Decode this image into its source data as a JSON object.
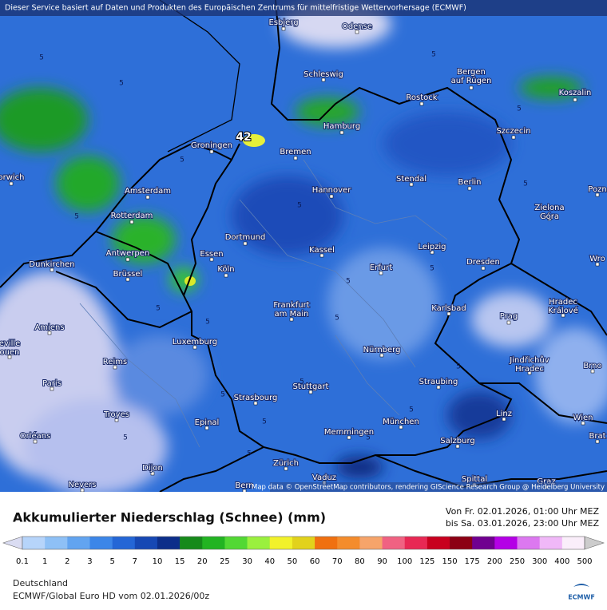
{
  "header": {
    "notice": "Dieser Service basiert auf Daten und Produkten des Europäischen Zentrums für mittelfristige Wettervorhersage (ECMWF)",
    "attribution": "Map data © OpenStreetMap contributors, rendering GIScience Research Group @ Heidelberg University"
  },
  "map": {
    "cities": [
      "Esbjerg",
      "Odense",
      "Schleswig",
      "Bergen",
      "auf Rügen",
      "Koszalin",
      "Rostock",
      "Hamburg",
      "Szczecin",
      "Groningen",
      "Bremen",
      "orwich",
      "Amsterdam",
      "Stendal",
      "Berlin",
      "Hannover",
      "Pozn",
      "Zielona",
      "Góra",
      "Rotterdam",
      "Dortmund",
      "Essen",
      "Antwerpen",
      "Leipzig",
      "Kassel",
      "Erfurt",
      "Wro",
      "Dresden",
      "Dunkirchen",
      "Köln",
      "Brüssel",
      "Frankfurt",
      "am Main",
      "Karlsbad",
      "Hradec",
      "Králové",
      "Prag",
      "Amiens",
      "Luxemburg",
      "eville",
      "ouen",
      "Nürnberg",
      "Jindřichův",
      "Hradec",
      "Reims",
      "Brno",
      "Paris",
      "Stuttgart",
      "Straubing",
      "Strasbourg",
      "Troyes",
      "Linz",
      "Wien",
      "München",
      "Epinal",
      "Orléans",
      "Memmingen",
      "Salzburg",
      "Brat",
      "Zürich",
      "Dijon",
      "Vaduz",
      "Bern",
      "Nevers",
      "Spittal",
      "Graz"
    ],
    "value_labels": [
      42,
      5,
      5,
      5,
      5,
      5,
      5,
      5,
      5,
      5,
      5,
      5,
      5,
      5,
      5,
      5,
      5,
      5,
      5,
      5,
      5,
      5
    ]
  },
  "footer": {
    "title": "Akkumulierter Niederschlag (Schnee) (mm)",
    "from": "Von Fr. 02.01.2026, 01:00 Uhr MEZ",
    "to": "bis Sa. 03.01.2026, 23:00 Uhr MEZ",
    "region": "Deutschland",
    "model": "ECMWF/Global Euro HD vom  02.01.2026/00z",
    "logo": "ECMWF"
  },
  "legend": {
    "levels": [
      0.1,
      1,
      2,
      3,
      5,
      7,
      10,
      15,
      20,
      25,
      30,
      40,
      50,
      60,
      70,
      80,
      90,
      100,
      125,
      150,
      175,
      200,
      250,
      300,
      400,
      500
    ],
    "colors": [
      "#dadcf2",
      "#b6d4fa",
      "#8ec0f6",
      "#62a4f0",
      "#3c86e8",
      "#2466d6",
      "#1648b4",
      "#0c2e8a",
      "#168a1a",
      "#22b422",
      "#52d834",
      "#9af03e",
      "#f2f22a",
      "#e2d21c",
      "#f07010",
      "#f48c2c",
      "#f6a46a",
      "#f06282",
      "#e82854",
      "#c8001e",
      "#8c0014",
      "#700090",
      "#b400e6",
      "#dc78f0",
      "#f0b8f8",
      "#faeefa",
      "#cccccc"
    ]
  }
}
